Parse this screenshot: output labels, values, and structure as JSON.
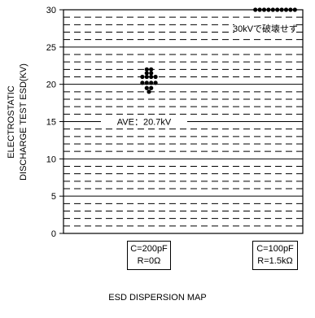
{
  "chart_data": {
    "type": "scatter",
    "title": "",
    "caption": "ESD DISPERSION MAP",
    "ylabel_lines": [
      "ELECTROSTATIC",
      "DISCHARGE TEST ESD(KV)"
    ],
    "ylim": [
      0,
      30
    ],
    "yticks": [
      0,
      5,
      10,
      15,
      20,
      25,
      30
    ],
    "minor_step": 1,
    "categories": [
      {
        "lines": [
          "C=200pF",
          "R=0Ω"
        ]
      },
      {
        "lines": [
          "C=100pF",
          "R=1.5kΩ"
        ]
      }
    ],
    "series": [
      {
        "category_index": 0,
        "points": [
          {
            "y": 22,
            "count": 2
          },
          {
            "y": 21.5,
            "count": 2
          },
          {
            "y": 21,
            "count": 4
          },
          {
            "y": 20.2,
            "count": 4
          },
          {
            "y": 19.5,
            "count": 2
          },
          {
            "y": 19,
            "count": 1
          }
        ]
      },
      {
        "category_index": 1,
        "points": [
          {
            "y": 30,
            "count": 10
          }
        ]
      }
    ],
    "annotations": {
      "average": {
        "label": "AVE：20.7kV",
        "y": 15
      },
      "no_failure": {
        "label": "30kVで破壊せず",
        "y": 27.5
      }
    }
  }
}
